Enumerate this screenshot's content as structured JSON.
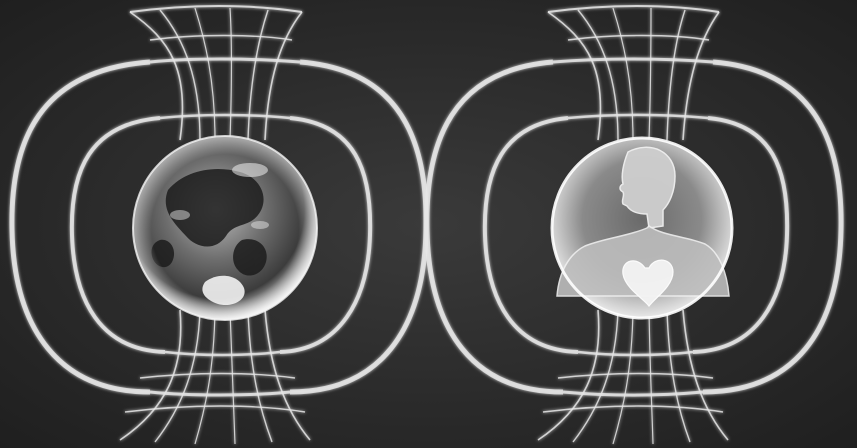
{
  "image": {
    "panels": [
      {
        "id": "left",
        "subject_icon": "earth-globe-icon",
        "field_icon": "toroidal-field-icon"
      },
      {
        "id": "right",
        "subject_icon": "human-bust-with-heart-icon",
        "field_icon": "toroidal-field-icon"
      }
    ],
    "colors": {
      "background": "#2b2b2b",
      "field_lines": "#e8e8e8",
      "sphere_glow": "#ffffff"
    }
  }
}
